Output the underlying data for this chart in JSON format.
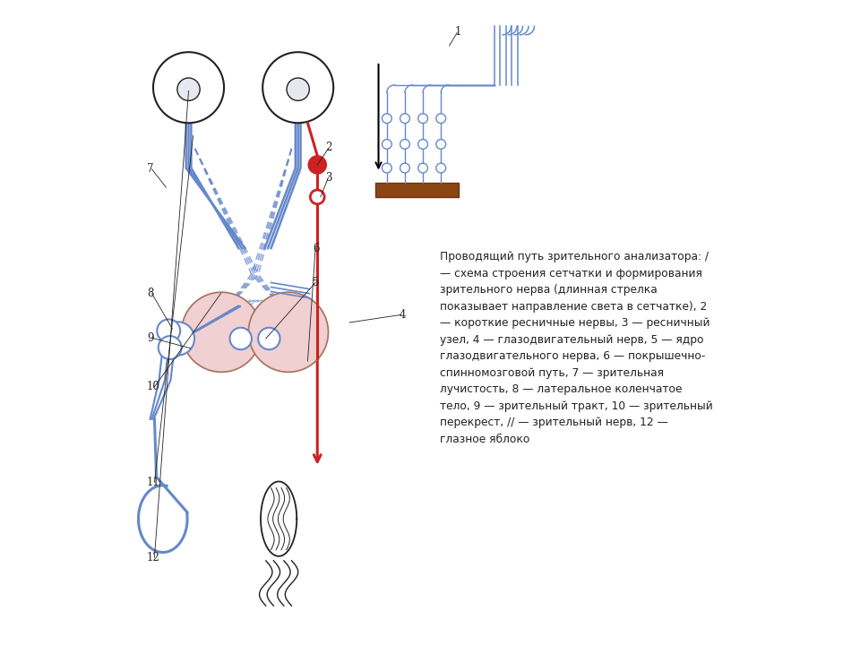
{
  "bg_color": "#ffffff",
  "blue": "#6688cc",
  "blue_light": "#aabbdd",
  "blue_dark": "#4466aa",
  "red": "#cc2222",
  "dark": "#222222",
  "pink_fill": "#f0d0d0",
  "brown": "#8b4513",
  "label_color": "#222222",
  "text_block": "Проводящий путь зрительного анализатора: /\n— схема строения сетчатки и формирования\nзрительного нерва (длинная стрелка\nпоказывает направление света в сетчатке), 2\n— короткие ресничные нервы, 3 — ресничный\nузел, 4 — глазодвигательный нерв, 5 — ядро\nглазодвигательного нерва, 6 — покрышечно-\nспинномозговой путь, 7 — зрительная\nлучистость, 8 — латеральное коленчатое\nтело, 9 — зрительный тракт, 10 — зрительный\nперекрест, // — зрительный нерв, 12 —\nглазное яблоко"
}
